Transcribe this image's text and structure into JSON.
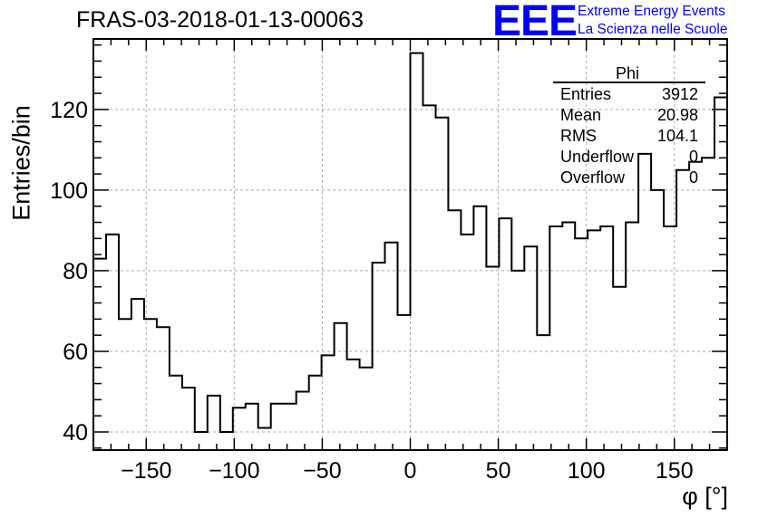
{
  "title": "FRAS-03-2018-01-13-00063",
  "logo": {
    "mark": "EEE",
    "line1": "Extreme Energy Events",
    "line2": "La Scienza nelle Scuole",
    "color": "#0000ff"
  },
  "stats": {
    "name": "Phi",
    "rows": [
      {
        "label": "Entries",
        "value": "3912"
      },
      {
        "label": "Mean",
        "value": "20.98"
      },
      {
        "label": "RMS",
        "value": "104.1"
      },
      {
        "label": "Underflow",
        "value": "0"
      },
      {
        "label": "Overflow",
        "value": "0"
      }
    ]
  },
  "chart_data": {
    "type": "histogram",
    "xlabel": "φ [°]",
    "ylabel": "Entries/bin",
    "xlim": [
      -180,
      180
    ],
    "ylim": [
      35.5,
      137.5
    ],
    "bin_width": 7.2,
    "grid": true,
    "line_color": "#000000",
    "x_ticks": [
      -150,
      -100,
      -50,
      0,
      50,
      100,
      150
    ],
    "x_tick_labels": [
      "−150",
      "−100",
      "−50",
      "0",
      "50",
      "100",
      "150"
    ],
    "y_ticks": [
      40,
      60,
      80,
      100,
      120
    ],
    "y_tick_labels": [
      "40",
      "60",
      "80",
      "100",
      "120"
    ],
    "values": [
      83,
      89,
      68,
      73,
      68,
      66,
      54,
      51,
      40,
      49,
      40,
      46,
      47,
      41,
      47,
      47,
      50,
      54,
      59,
      67,
      58,
      56,
      82,
      87,
      69,
      134,
      121,
      118,
      95,
      89,
      96,
      81,
      93,
      80,
      86,
      64,
      91,
      92,
      88,
      90,
      91,
      76,
      92,
      109,
      100,
      91,
      105,
      107,
      108,
      123
    ]
  }
}
